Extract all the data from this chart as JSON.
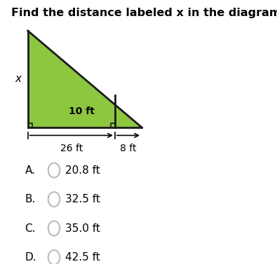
{
  "title_text": "Find the distance labeled x in the diagram.",
  "triangle_fill": "#8dc63f",
  "triangle_edge": "#1a1a1a",
  "triangle_lw": 2.0,
  "label_x": "x",
  "label_10ft": "10 ft",
  "label_26ft": "26 ft",
  "label_8ft": "8 ft",
  "choices": [
    "A.",
    "B.",
    "C.",
    "D."
  ],
  "answers": [
    "20.8 ft",
    "32.5 ft",
    "35.0 ft",
    "42.5 ft"
  ],
  "bg_color": "#ffffff",
  "text_color": "#000000",
  "font_size_title": 11.5,
  "font_size_labels": 10,
  "font_size_choices": 11,
  "circle_color": "#bbbbbb",
  "TL": [
    0,
    30
  ],
  "BL": [
    0,
    0
  ],
  "BR": [
    34,
    0
  ],
  "IP": [
    26,
    0
  ],
  "IT": [
    26,
    10
  ]
}
